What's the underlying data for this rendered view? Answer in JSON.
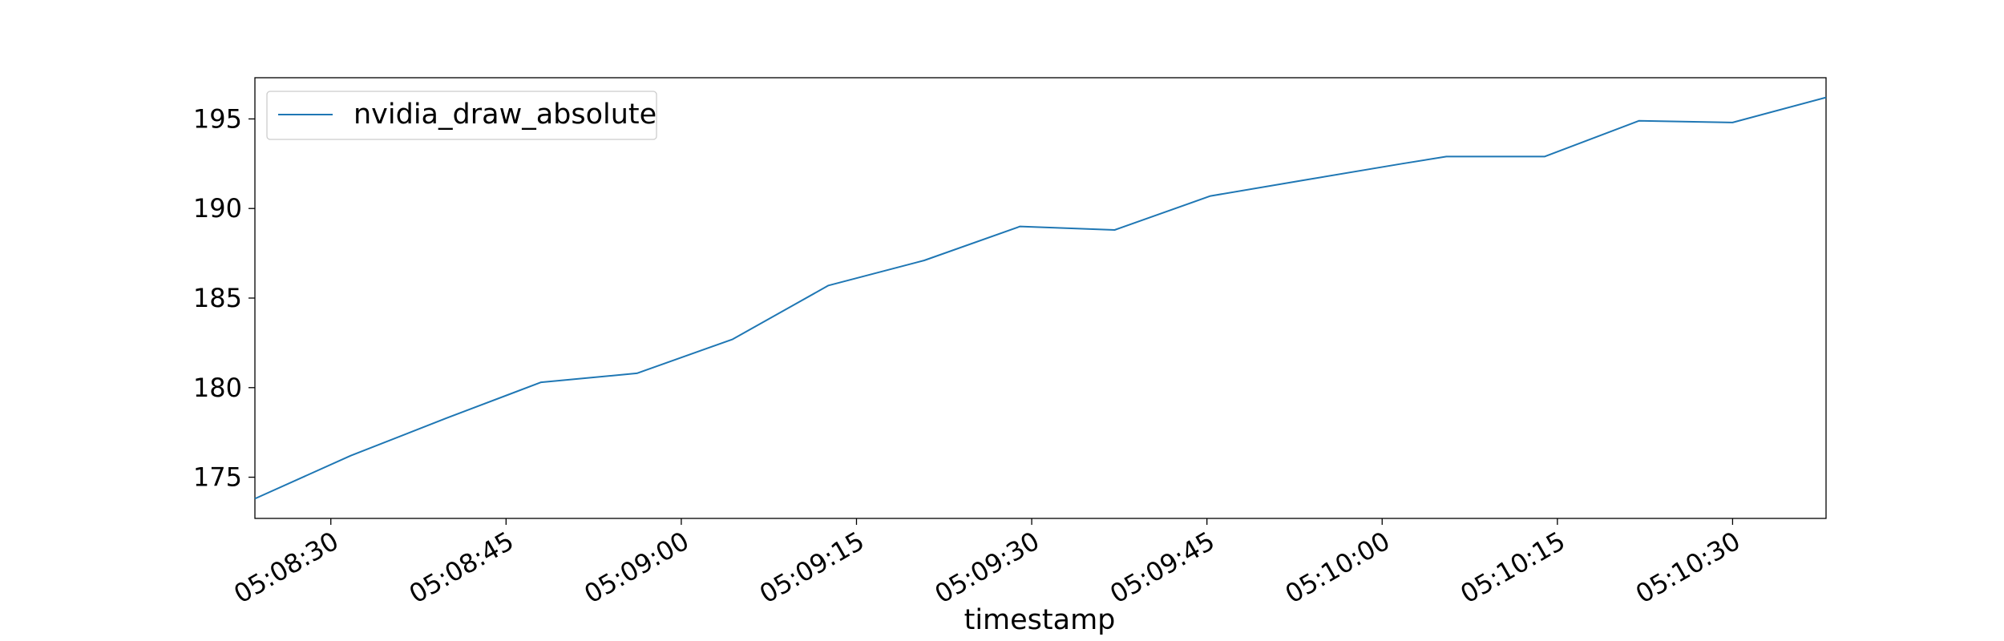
{
  "chart_data": {
    "type": "line",
    "title": "",
    "xlabel": "timestamp",
    "ylabel": "",
    "x_tick_labels": [
      "05:08:30",
      "05:08:45",
      "05:09:00",
      "05:09:15",
      "05:09:30",
      "05:09:45",
      "05:10:00",
      "05:10:15",
      "05:10:30"
    ],
    "x_tick_seconds": [
      30,
      45,
      60,
      75,
      90,
      105,
      120,
      135,
      150
    ],
    "y_ticks": [
      175,
      180,
      185,
      190,
      195
    ],
    "y_tick_labels": [
      "175",
      "180",
      "185",
      "190",
      "195"
    ],
    "xlim": [
      "05:08:23.5",
      "05:10:38"
    ],
    "xlim_seconds": [
      23.5,
      158
    ],
    "ylim": [
      172.7,
      197.3
    ],
    "grid": false,
    "legend": {
      "position": "top-left",
      "show": true
    },
    "series": [
      {
        "name": "nvidia_draw_absolute",
        "color": "#1f77b4",
        "x": [
          "05:08:23.5",
          "05:08:31.7",
          "05:08:39.9",
          "05:08:48.0",
          "05:08:56.2",
          "05:09:04.4",
          "05:09:12.6",
          "05:09:20.8",
          "05:09:29.0",
          "05:09:37.1",
          "05:09:45.3",
          "05:09:53.5",
          "05:10:01.7",
          "05:10:05.5",
          "05:10:13.9",
          "05:10:22.0",
          "05:10:30.0",
          "05:10:38.0"
        ],
        "x_seconds": [
          23.5,
          31.7,
          39.9,
          48.0,
          56.2,
          64.4,
          72.6,
          80.8,
          89.0,
          97.1,
          105.3,
          113.5,
          121.7,
          125.5,
          133.9,
          142.0,
          150.0,
          158.0
        ],
        "y": [
          173.8,
          176.2,
          178.3,
          180.3,
          180.8,
          182.7,
          185.7,
          187.1,
          189.0,
          188.8,
          190.7,
          191.6,
          192.5,
          192.9,
          192.9,
          194.9,
          194.8,
          196.2
        ]
      }
    ]
  }
}
